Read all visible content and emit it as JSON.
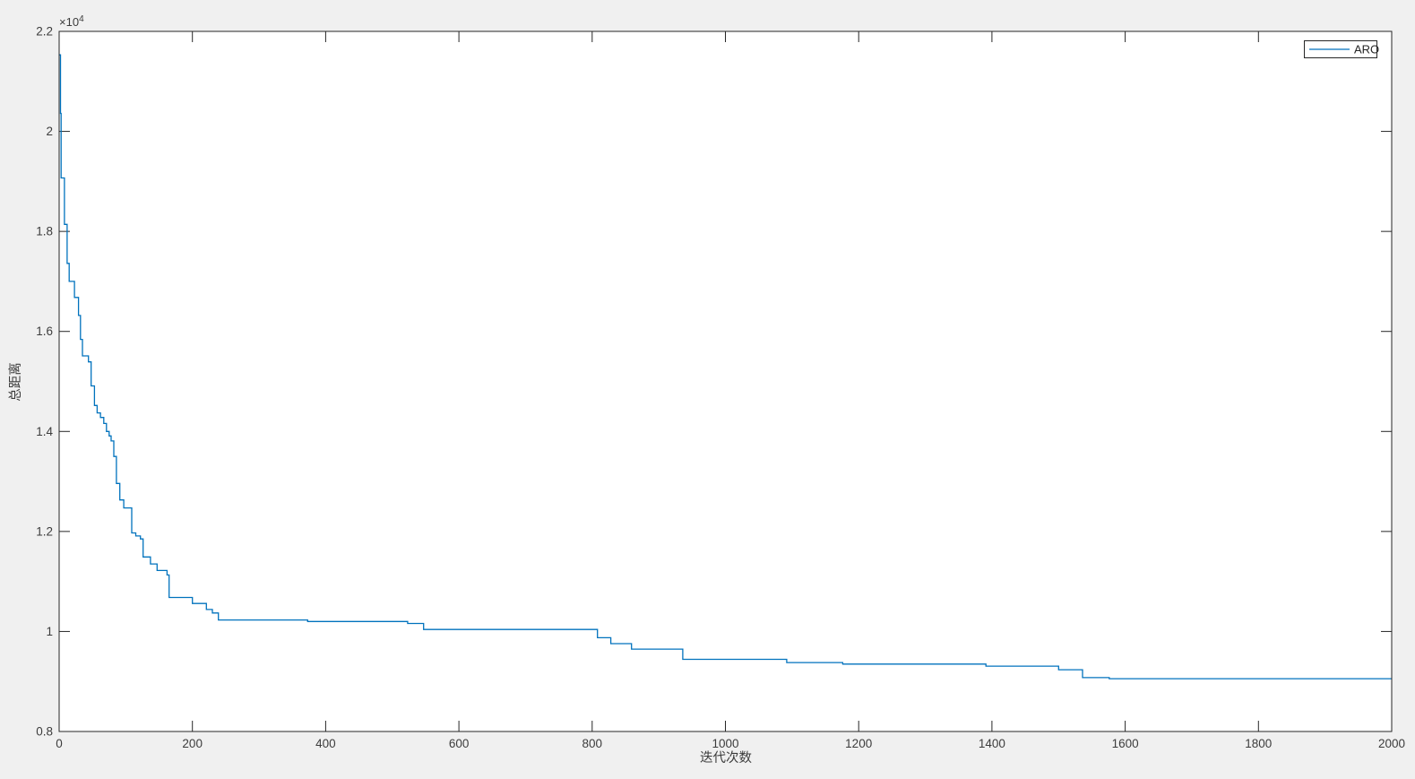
{
  "figure": {
    "background_color": "#f0f0f0",
    "plot_background_color": "#ffffff",
    "axis_color": "#262626",
    "text_color": "#3c3c3c"
  },
  "chart_data": {
    "type": "line",
    "title": "",
    "xlabel": "迭代次数",
    "ylabel": "总距离",
    "grid": false,
    "box": true,
    "xlim": [
      0,
      2000
    ],
    "ylim": [
      8000,
      22000
    ],
    "x_ticks": [
      0,
      200,
      400,
      600,
      800,
      1000,
      1200,
      1400,
      1600,
      1800,
      2000
    ],
    "x_tick_labels": [
      "0",
      "200",
      "400",
      "600",
      "800",
      "1000",
      "1200",
      "1400",
      "1600",
      "1800",
      "2000"
    ],
    "y_ticks": [
      8000,
      10000,
      12000,
      14000,
      16000,
      18000,
      20000,
      22000
    ],
    "y_tick_labels": [
      "0.8",
      "1",
      "1.2",
      "1.4",
      "1.6",
      "1.8",
      "2",
      "2.2"
    ],
    "y_axis_exponent": {
      "base": "×10",
      "power": "4"
    },
    "legend": {
      "position": "top-right",
      "entries": [
        {
          "label": "ARO",
          "color": "#0072BD"
        }
      ]
    },
    "series": [
      {
        "name": "ARO",
        "color": "#0072BD",
        "line_style": "step-after",
        "x_end": 2000,
        "points": [
          [
            0,
            21530
          ],
          [
            2,
            20360
          ],
          [
            3,
            19070
          ],
          [
            8,
            18140
          ],
          [
            12,
            17360
          ],
          [
            15,
            17000
          ],
          [
            23,
            16680
          ],
          [
            29,
            16320
          ],
          [
            32,
            15840
          ],
          [
            35,
            15510
          ],
          [
            44,
            15390
          ],
          [
            48,
            14910
          ],
          [
            53,
            14520
          ],
          [
            57,
            14370
          ],
          [
            62,
            14280
          ],
          [
            67,
            14160
          ],
          [
            71,
            14000
          ],
          [
            75,
            13910
          ],
          [
            78,
            13810
          ],
          [
            82,
            13500
          ],
          [
            86,
            12960
          ],
          [
            91,
            12630
          ],
          [
            97,
            12470
          ],
          [
            109,
            11970
          ],
          [
            115,
            11910
          ],
          [
            122,
            11850
          ],
          [
            126,
            11490
          ],
          [
            137,
            11350
          ],
          [
            147,
            11220
          ],
          [
            162,
            11130
          ],
          [
            165,
            10680
          ],
          [
            200,
            10560
          ],
          [
            221,
            10440
          ],
          [
            230,
            10370
          ],
          [
            239,
            10230
          ],
          [
            373,
            10200
          ],
          [
            523,
            10160
          ],
          [
            547,
            10040
          ],
          [
            808,
            9875
          ],
          [
            828,
            9756
          ],
          [
            859,
            9648
          ],
          [
            936,
            9443
          ],
          [
            1092,
            9379
          ],
          [
            1176,
            9348
          ],
          [
            1391,
            9307
          ],
          [
            1500,
            9235
          ],
          [
            1536,
            9078
          ],
          [
            1576,
            9055
          ]
        ]
      }
    ]
  }
}
